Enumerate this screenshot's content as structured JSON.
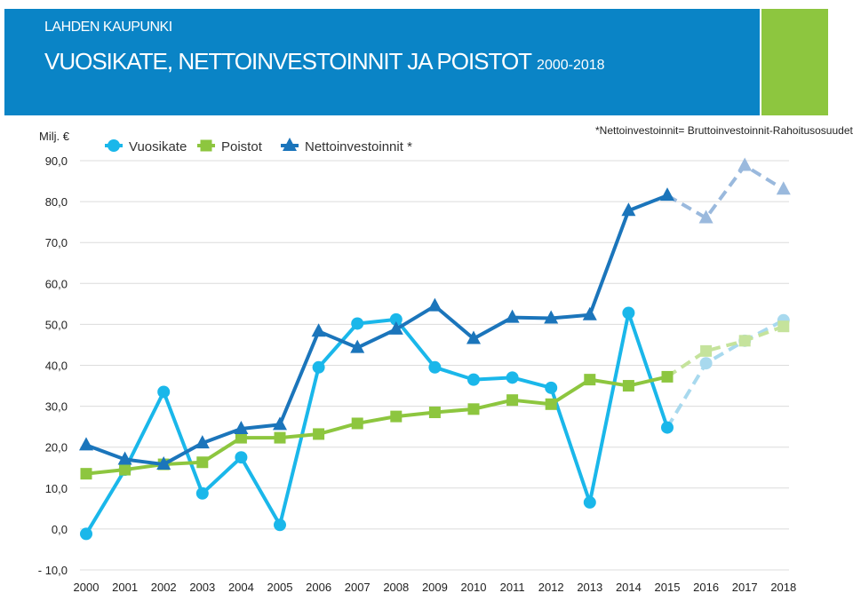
{
  "header": {
    "org": "LAHDEN KAUPUNKI",
    "title": "VUOSIKATE, NETTOINVESTOINNIT JA POISTOT",
    "years": "2000-2018"
  },
  "unit_label": "Milj. €",
  "note": "*Nettoinvestoinnit=   Bruttoinvestoinnit-Rahoitusosuudet",
  "colors": {
    "banner": "#0a84c6",
    "accent": "#8dc63f",
    "vuosikate": "#1ab7ea",
    "poistot": "#8dc63f",
    "nettoinvestoinnit": "#1b75bb",
    "vuosikate_forecast": "#a8d9ee",
    "poistot_forecast": "#c5e39c",
    "nettoinvestoinnit_forecast": "#9ab9dd"
  },
  "chart_data": {
    "type": "line",
    "x": [
      "2000",
      "2001",
      "2002",
      "2003",
      "2004",
      "2005",
      "2006",
      "2007",
      "2008",
      "2009",
      "2010",
      "2011",
      "2012",
      "2013",
      "2014",
      "2015",
      "2016",
      "2017",
      "2018"
    ],
    "y_ticks": [
      "90,0",
      "80,0",
      "70,0",
      "60,0",
      "50,0",
      "40,0",
      "30,0",
      "20,0",
      "10,0",
      "0,0",
      "- 10,0"
    ],
    "ylim": [
      -10,
      90
    ],
    "grid": true,
    "legend_position": "top-left",
    "forecast_from": "2015",
    "series": [
      {
        "name": "Vuosikate",
        "marker": "circle",
        "values": [
          -1.2,
          14.5,
          33.5,
          8.7,
          17.5,
          1.0,
          39.5,
          50.2,
          51.2,
          39.5,
          36.5,
          37.0,
          34.5,
          6.5,
          52.8,
          24.8,
          40.5,
          46.0,
          51.0
        ]
      },
      {
        "name": "Poistot",
        "marker": "square",
        "values": [
          13.5,
          14.5,
          15.8,
          16.3,
          22.3,
          22.3,
          23.2,
          25.8,
          27.5,
          28.5,
          29.3,
          31.5,
          30.5,
          36.5,
          35.0,
          37.2,
          43.5,
          46.0,
          49.5
        ]
      },
      {
        "name": "Nettoinvestoinnit *",
        "marker": "triangle",
        "values": [
          20.5,
          17.0,
          15.8,
          21.0,
          24.5,
          25.5,
          48.3,
          44.3,
          48.8,
          54.5,
          46.5,
          51.7,
          51.5,
          52.3,
          77.8,
          81.5,
          76.0,
          88.8,
          83.0
        ]
      }
    ]
  }
}
